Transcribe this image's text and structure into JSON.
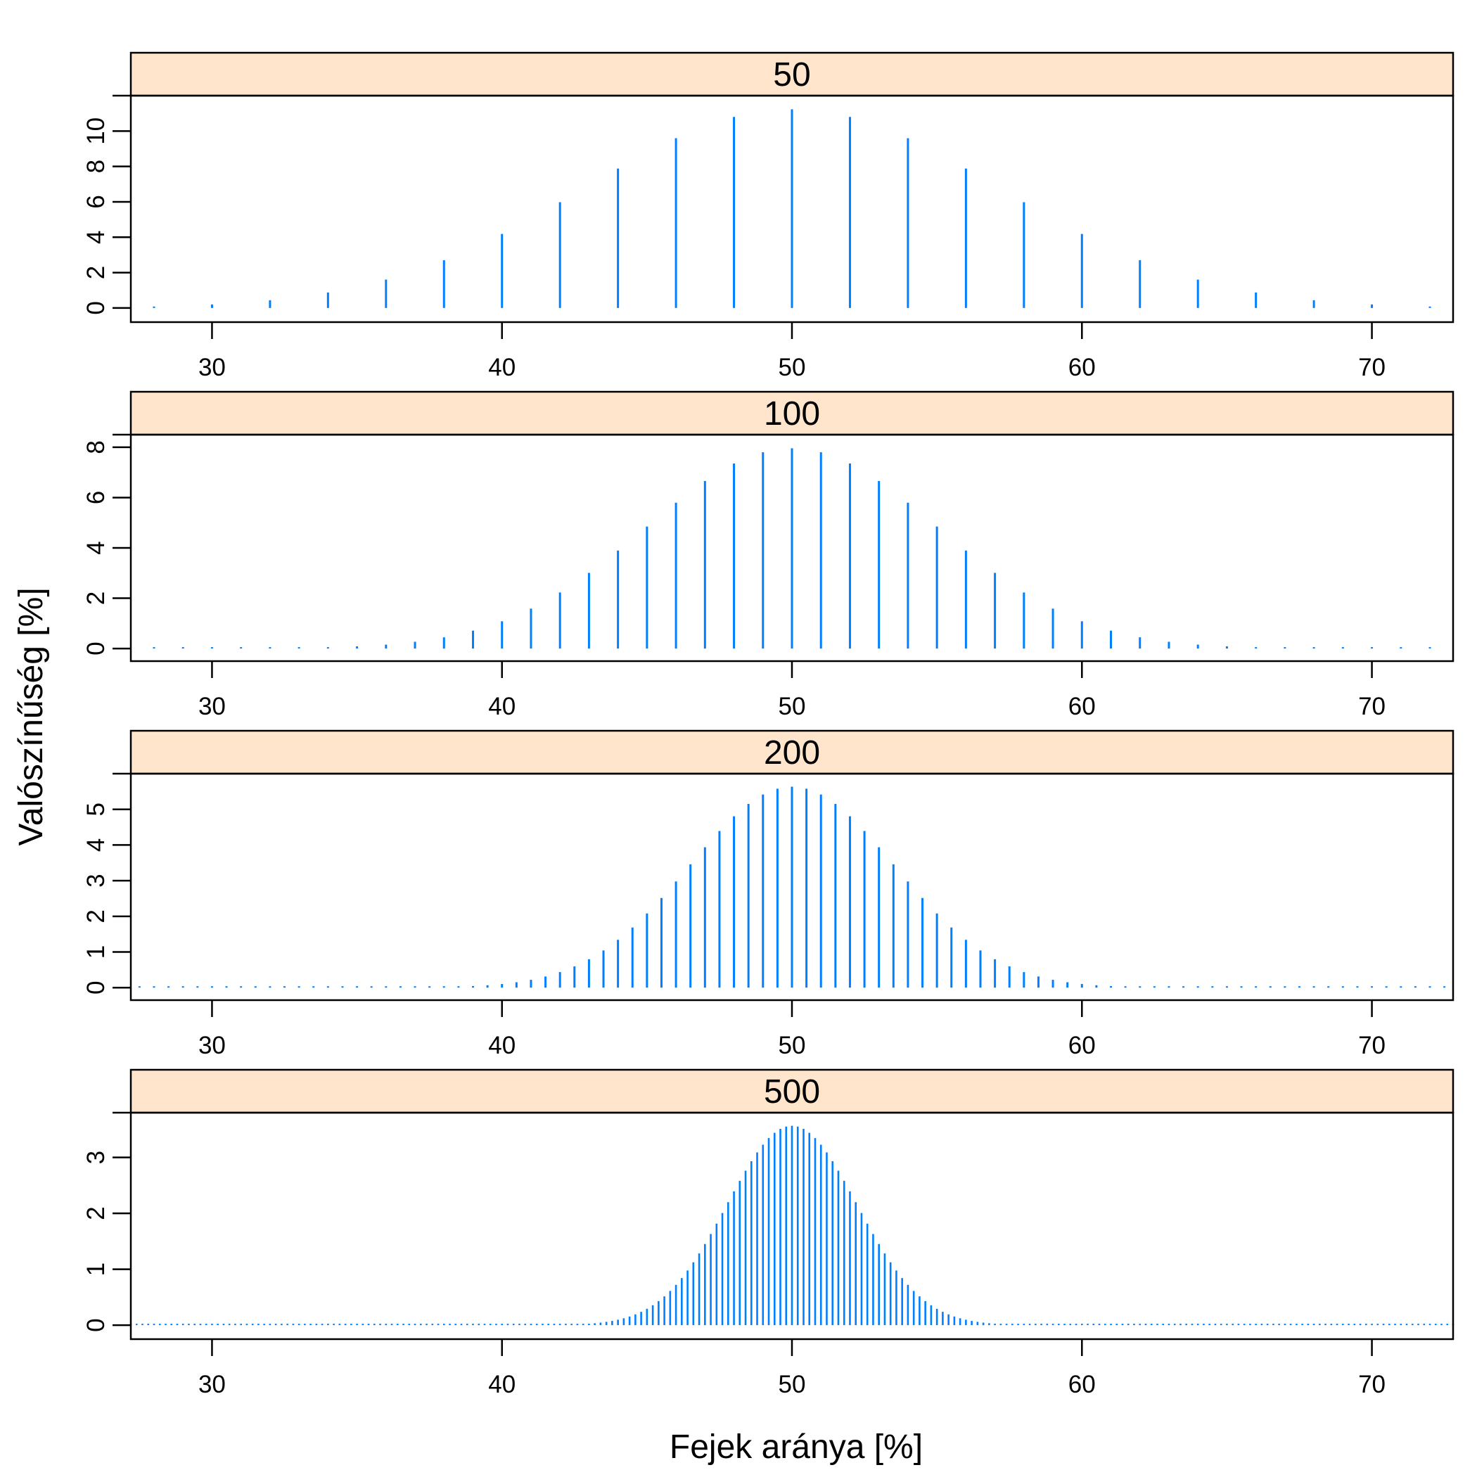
{
  "chart_data": {
    "type": "bar",
    "style": "binomial-probability-spikes",
    "xlabel": "Fejek aránya [%]",
    "ylabel": "Valószínűség [%]",
    "xlim": [
      27.2,
      72.8
    ],
    "x_ticks": [
      30,
      40,
      50,
      60,
      70
    ],
    "bar_color": "#0080ff",
    "strip_color": "#ffe5cc",
    "panels": [
      {
        "strip_label": "50",
        "n": 50,
        "ylim": [
          -0.8,
          12
        ],
        "y_ticks": [
          0,
          2,
          4,
          6,
          8,
          10
        ]
      },
      {
        "strip_label": "100",
        "n": 100,
        "ylim": [
          -0.5,
          8.5
        ],
        "y_ticks": [
          0,
          2,
          4,
          6,
          8
        ]
      },
      {
        "strip_label": "200",
        "n": 200,
        "ylim": [
          -0.35,
          6
        ],
        "y_ticks": [
          0,
          1,
          2,
          3,
          4,
          5
        ]
      },
      {
        "strip_label": "500",
        "n": 500,
        "ylim": [
          -0.25,
          3.8
        ],
        "y_ticks": [
          0,
          1,
          2,
          3
        ]
      }
    ]
  }
}
